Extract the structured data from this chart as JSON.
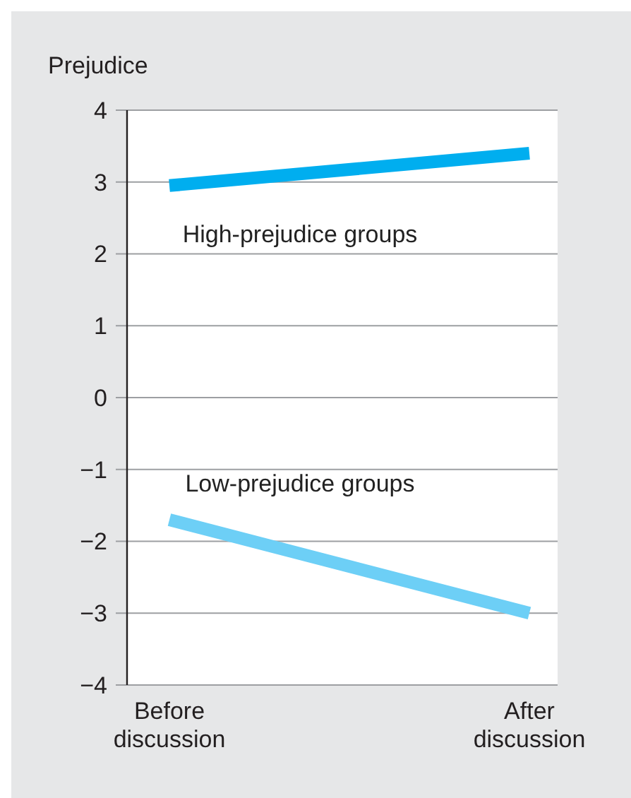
{
  "chart_data": {
    "type": "line",
    "ylabel": "Prejudice",
    "categories": [
      "Before discussion",
      "After discussion"
    ],
    "series": [
      {
        "name": "High-prejudice groups",
        "color": "#00aeef",
        "values": [
          2.95,
          3.4
        ]
      },
      {
        "name": "Low-prejudice groups",
        "color": "#6dcff6",
        "values": [
          -1.7,
          -3.0
        ]
      }
    ],
    "ylim": [
      -4,
      4
    ],
    "yticks": [
      {
        "value": -4,
        "label": "−4"
      },
      {
        "value": -3,
        "label": "−3"
      },
      {
        "value": -2,
        "label": "−2"
      },
      {
        "value": -1,
        "label": "−1"
      },
      0,
      1,
      2,
      3,
      4
    ],
    "grid": "y",
    "marker": "none",
    "line_style": "solid"
  }
}
